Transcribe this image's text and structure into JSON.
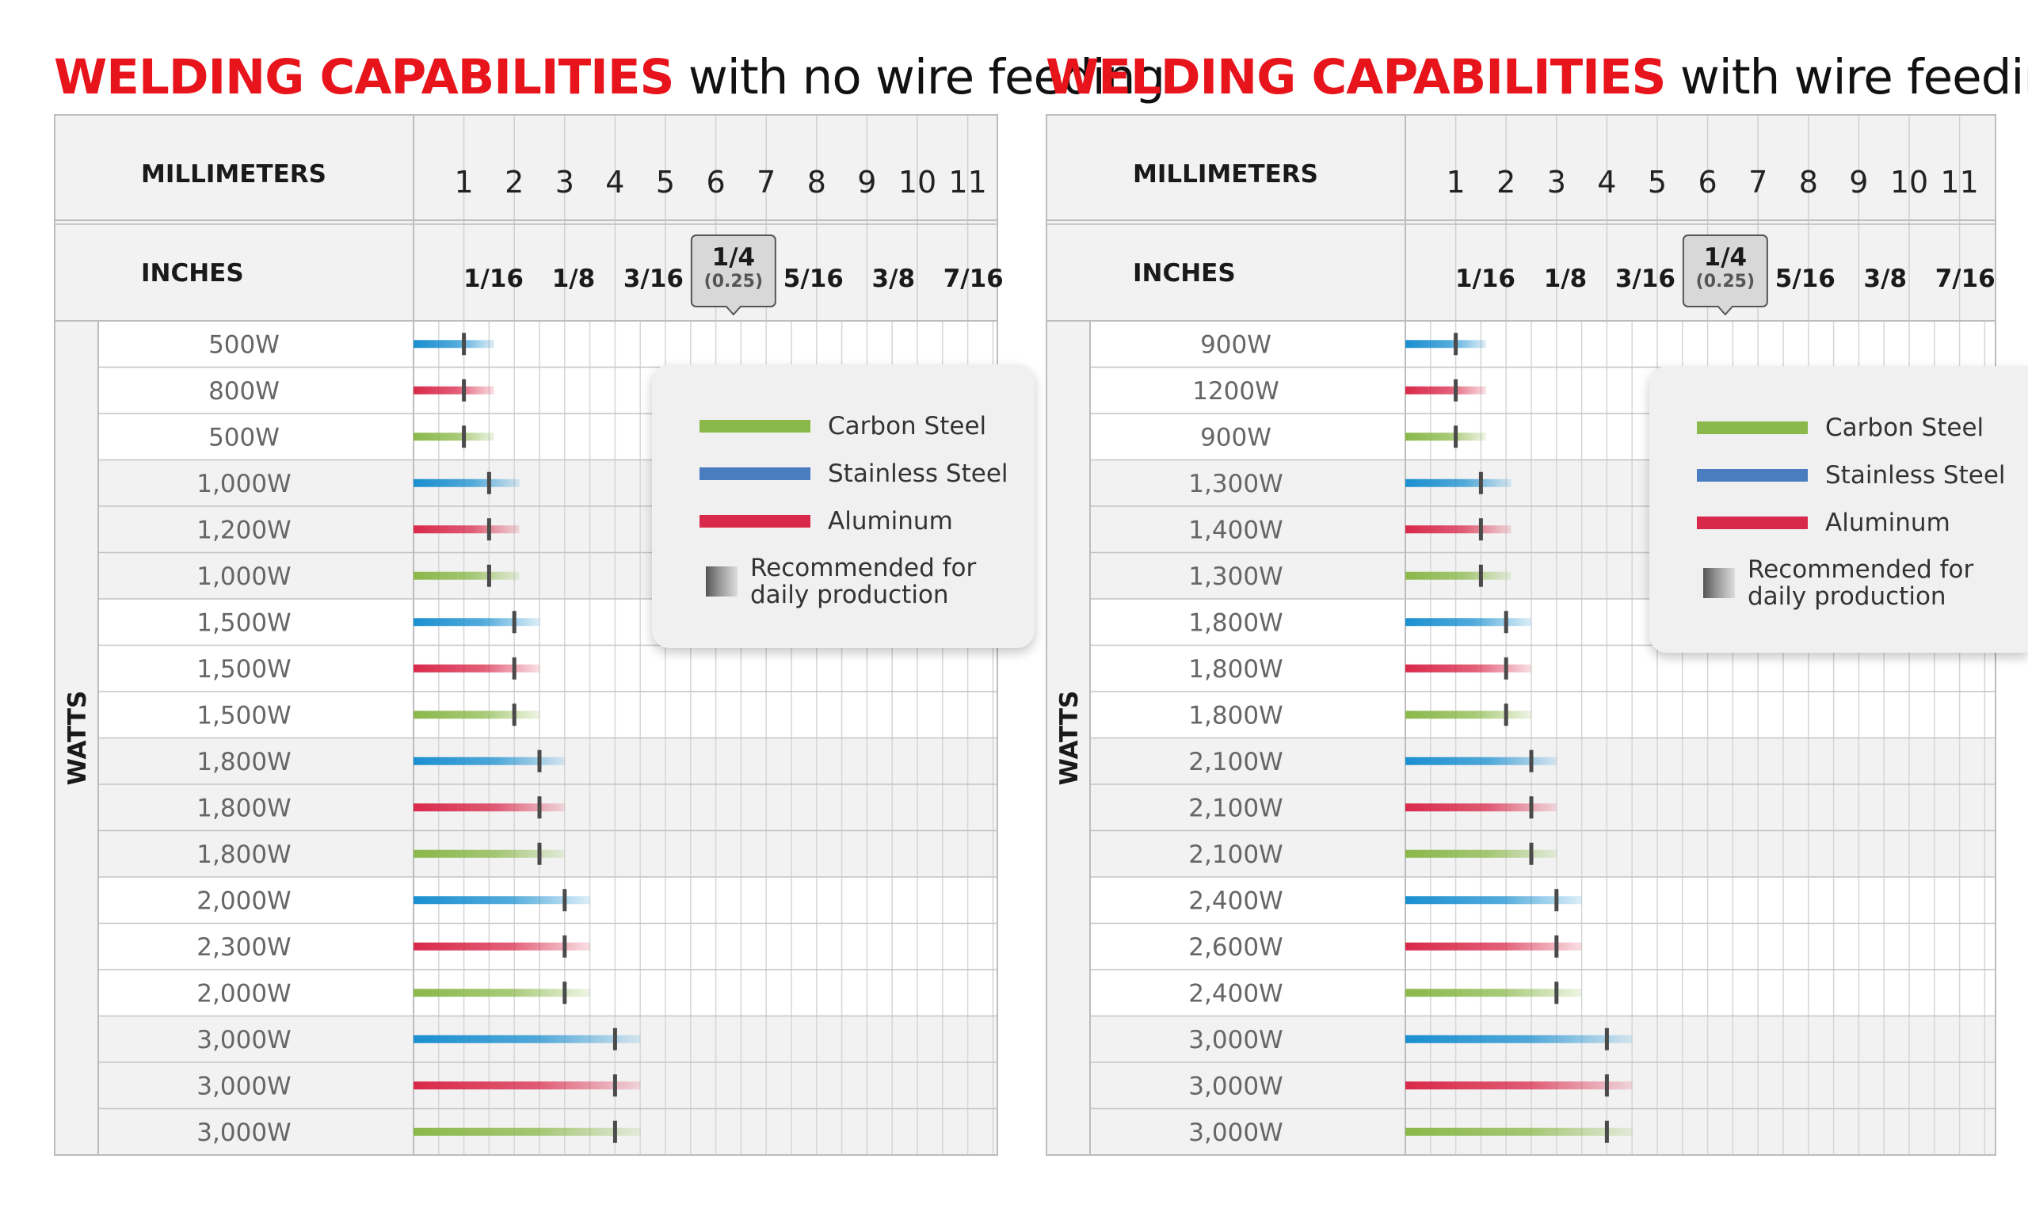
{
  "colors": {
    "carbon": "#8ab84a",
    "stainless": "#1a8fd0",
    "aluminum": "#d9294a",
    "title_accent": "#e8141c",
    "marker": "#4a4a4a"
  },
  "legend": {
    "items": [
      {
        "label": "Carbon Steel",
        "color": "#8ab84a"
      },
      {
        "label": "Stainless Steel",
        "color": "#4a7cc0"
      },
      {
        "label": "Aluminum",
        "color": "#d9294a"
      }
    ],
    "recommended_line1": "Recommended for",
    "recommended_line2": "daily production"
  },
  "chart_data": [
    {
      "type": "bar",
      "title_highlight": "WELDING CAPABILITIES",
      "title_rest": "with no wire feeding",
      "x_axis_mm_label": "MILLIMETERS",
      "x_axis_in_label": "INCHES",
      "y_axis_label": "WATTS",
      "mm_ticks": [
        "1",
        "2",
        "3",
        "4",
        "5",
        "6",
        "7",
        "8",
        "9",
        "10",
        "11"
      ],
      "inch_ticks": [
        "1/16",
        "1/8",
        "3/16",
        "1/4",
        "5/16",
        "3/8",
        "7/16"
      ],
      "callout_main": "1/4",
      "callout_sub": "(0.25)",
      "xlim_mm": [
        0,
        11.5
      ],
      "groups": [
        {
          "recommended_mm": 1,
          "max_mm": 1.6,
          "rows": [
            {
              "watts": "500W",
              "material": "Stainless Steel"
            },
            {
              "watts": "800W",
              "material": "Aluminum"
            },
            {
              "watts": "500W",
              "material": "Carbon Steel"
            }
          ]
        },
        {
          "recommended_mm": 1.5,
          "max_mm": 2.1,
          "rows": [
            {
              "watts": "1,000W",
              "material": "Stainless Steel"
            },
            {
              "watts": "1,200W",
              "material": "Aluminum"
            },
            {
              "watts": "1,000W",
              "material": "Carbon Steel"
            }
          ]
        },
        {
          "recommended_mm": 2,
          "max_mm": 2.5,
          "rows": [
            {
              "watts": "1,500W",
              "material": "Stainless Steel"
            },
            {
              "watts": "1,500W",
              "material": "Aluminum"
            },
            {
              "watts": "1,500W",
              "material": "Carbon Steel"
            }
          ]
        },
        {
          "recommended_mm": 2.5,
          "max_mm": 3.0,
          "rows": [
            {
              "watts": "1,800W",
              "material": "Stainless Steel"
            },
            {
              "watts": "1,800W",
              "material": "Aluminum"
            },
            {
              "watts": "1,800W",
              "material": "Carbon Steel"
            }
          ]
        },
        {
          "recommended_mm": 3,
          "max_mm": 3.5,
          "rows": [
            {
              "watts": "2,000W",
              "material": "Stainless Steel"
            },
            {
              "watts": "2,300W",
              "material": "Aluminum"
            },
            {
              "watts": "2,000W",
              "material": "Carbon Steel"
            }
          ]
        },
        {
          "recommended_mm": 4,
          "max_mm": 4.5,
          "rows": [
            {
              "watts": "3,000W",
              "material": "Stainless Steel"
            },
            {
              "watts": "3,000W",
              "material": "Aluminum"
            },
            {
              "watts": "3,000W",
              "material": "Carbon Steel"
            }
          ]
        }
      ]
    },
    {
      "type": "bar",
      "title_highlight": "WELDING CAPABILITIES",
      "title_rest": "with wire feeding",
      "x_axis_mm_label": "MILLIMETERS",
      "x_axis_in_label": "INCHES",
      "y_axis_label": "WATTS",
      "mm_ticks": [
        "1",
        "2",
        "3",
        "4",
        "5",
        "6",
        "7",
        "8",
        "9",
        "10",
        "11"
      ],
      "inch_ticks": [
        "1/16",
        "1/8",
        "3/16",
        "1/4",
        "5/16",
        "3/8",
        "7/16"
      ],
      "callout_main": "1/4",
      "callout_sub": "(0.25)",
      "xlim_mm": [
        0,
        11.5
      ],
      "groups": [
        {
          "recommended_mm": 1,
          "max_mm": 1.6,
          "rows": [
            {
              "watts": "900W",
              "material": "Stainless Steel"
            },
            {
              "watts": "1200W",
              "material": "Aluminum"
            },
            {
              "watts": "900W",
              "material": "Carbon Steel"
            }
          ]
        },
        {
          "recommended_mm": 1.5,
          "max_mm": 2.1,
          "rows": [
            {
              "watts": "1,300W",
              "material": "Stainless Steel"
            },
            {
              "watts": "1,400W",
              "material": "Aluminum"
            },
            {
              "watts": "1,300W",
              "material": "Carbon Steel"
            }
          ]
        },
        {
          "recommended_mm": 2,
          "max_mm": 2.5,
          "rows": [
            {
              "watts": "1,800W",
              "material": "Stainless Steel"
            },
            {
              "watts": "1,800W",
              "material": "Aluminum"
            },
            {
              "watts": "1,800W",
              "material": "Carbon Steel"
            }
          ]
        },
        {
          "recommended_mm": 2.5,
          "max_mm": 3.0,
          "rows": [
            {
              "watts": "2,100W",
              "material": "Stainless Steel"
            },
            {
              "watts": "2,100W",
              "material": "Aluminum"
            },
            {
              "watts": "2,100W",
              "material": "Carbon Steel"
            }
          ]
        },
        {
          "recommended_mm": 3,
          "max_mm": 3.5,
          "rows": [
            {
              "watts": "2,400W",
              "material": "Stainless Steel"
            },
            {
              "watts": "2,600W",
              "material": "Aluminum"
            },
            {
              "watts": "2,400W",
              "material": "Carbon Steel"
            }
          ]
        },
        {
          "recommended_mm": 4,
          "max_mm": 4.5,
          "rows": [
            {
              "watts": "3,000W",
              "material": "Stainless Steel"
            },
            {
              "watts": "3,000W",
              "material": "Aluminum"
            },
            {
              "watts": "3,000W",
              "material": "Carbon Steel"
            }
          ]
        }
      ]
    }
  ]
}
